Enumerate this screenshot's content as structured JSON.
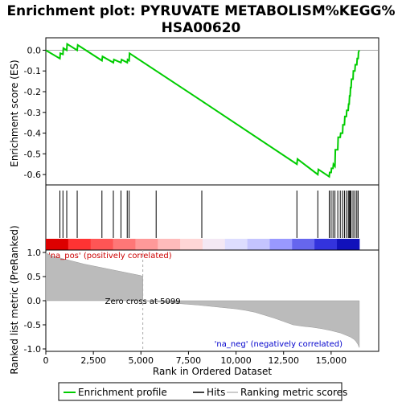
{
  "chart_data": {
    "type": "line",
    "title_line1": "Enrichment plot: PYRUVATE METABOLISM%KEGG%",
    "title_line2": "HSA00620",
    "x_axis": {
      "label": "Rank in Ordered Dataset",
      "range": [
        0,
        17500
      ],
      "ticks": [
        0,
        2500,
        5000,
        7500,
        10000,
        12500,
        15000
      ],
      "tick_labels": [
        "0",
        "2,500",
        "5,000",
        "7,500",
        "10,000",
        "12,500",
        "15,000"
      ]
    },
    "es_panel": {
      "ylabel": "Enrichment score (ES)",
      "ylim": [
        -0.65,
        0.06
      ],
      "yticks": [
        0.0,
        -0.1,
        -0.2,
        -0.3,
        -0.4,
        -0.5,
        -0.6
      ],
      "ytick_labels": [
        "0.0",
        "-0.1",
        "-0.2",
        "-0.3",
        "-0.4",
        "-0.5",
        "-0.6"
      ],
      "line_color": "#00cc00",
      "series": {
        "name": "Enrichment profile",
        "x": [
          0,
          740,
          760,
          900,
          920,
          1100,
          1120,
          1650,
          1680,
          2950,
          2980,
          3550,
          3580,
          3950,
          3980,
          4280,
          4300,
          4380,
          4400,
          8200,
          13200,
          13230,
          14300,
          14330,
          14900,
          14920,
          15000,
          15020,
          15100,
          15120,
          15200,
          15220,
          15350,
          15370,
          15480,
          15500,
          15600,
          15620,
          15700,
          15720,
          15800,
          15820,
          15900,
          15920,
          15950,
          15970,
          16000,
          16020,
          16050,
          16070,
          16150,
          16170,
          16250,
          16270,
          16350,
          16370,
          16420,
          16440,
          16480
        ],
        "y": [
          0.0,
          -0.04,
          -0.015,
          -0.02,
          0.01,
          0.0,
          0.03,
          0.0,
          0.025,
          -0.05,
          -0.03,
          -0.06,
          -0.045,
          -0.06,
          -0.045,
          -0.06,
          -0.045,
          -0.05,
          -0.015,
          -0.245,
          -0.55,
          -0.525,
          -0.6,
          -0.575,
          -0.61,
          -0.59,
          -0.59,
          -0.57,
          -0.57,
          -0.55,
          -0.56,
          -0.48,
          -0.48,
          -0.42,
          -0.42,
          -0.4,
          -0.4,
          -0.36,
          -0.36,
          -0.32,
          -0.32,
          -0.29,
          -0.29,
          -0.26,
          -0.26,
          -0.22,
          -0.22,
          -0.18,
          -0.18,
          -0.14,
          -0.14,
          -0.1,
          -0.1,
          -0.07,
          -0.07,
          -0.04,
          -0.04,
          -0.01,
          0.0
        ]
      }
    },
    "hits": [
      740,
      900,
      1100,
      1650,
      2950,
      3550,
      3950,
      4280,
      4380,
      5800,
      8200,
      13200,
      14300,
      14900,
      15000,
      15100,
      15200,
      15350,
      15480,
      15600,
      15700,
      15800,
      15900,
      15950,
      16000,
      16050,
      16150,
      16250,
      16350,
      16420
    ],
    "heat_colors": [
      "#dd0000",
      "#ff3333",
      "#ff5555",
      "#ff7777",
      "#ff9999",
      "#ffbbbb",
      "#ffd6d6",
      "#f4e8f4",
      "#ddddff",
      "#c4c4ff",
      "#9999ff",
      "#6666ee",
      "#3333dd",
      "#1111bb"
    ],
    "metric_panel": {
      "ylabel": "Ranked list metric (PreRanked)",
      "ylim": [
        -1.05,
        1.05
      ],
      "yticks": [
        1.0,
        0.5,
        0.0,
        -0.5,
        -1.0
      ],
      "ytick_labels": [
        "1.0",
        "0.5",
        "0.0",
        "-0.5",
        "-1.0"
      ],
      "curve_x": [
        0,
        100,
        300,
        600,
        1000,
        1500,
        2000,
        2500,
        3000,
        3500,
        4000,
        4500,
        5000,
        5099,
        5100,
        6000,
        7000,
        8000,
        9000,
        10000,
        10500,
        11000,
        11500,
        12000,
        12500,
        13000,
        13500,
        14000,
        14500,
        15000,
        15500,
        16000,
        16200,
        16300,
        16400,
        16480
      ],
      "curve_y": [
        1.0,
        0.97,
        0.93,
        0.9,
        0.86,
        0.81,
        0.76,
        0.72,
        0.68,
        0.64,
        0.6,
        0.56,
        0.52,
        0.5,
        0.0,
        -0.03,
        -0.06,
        -0.09,
        -0.13,
        -0.17,
        -0.2,
        -0.24,
        -0.3,
        -0.36,
        -0.43,
        -0.5,
        -0.53,
        -0.55,
        -0.58,
        -0.62,
        -0.67,
        -0.75,
        -0.8,
        -0.84,
        -0.9,
        -0.97
      ],
      "zero_cross_label": "Zero cross at 5099",
      "zero_cross_x": 5099,
      "pos_label": "'na_pos' (positively correlated)",
      "neg_label": "'na_neg' (negatively correlated)"
    },
    "legend": {
      "entries": [
        {
          "label": "Enrichment profile",
          "color": "#00cc00"
        },
        {
          "label": "Hits",
          "color": "#000000"
        },
        {
          "label": "Ranking metric scores",
          "color": "#bbbbbb"
        }
      ]
    }
  }
}
